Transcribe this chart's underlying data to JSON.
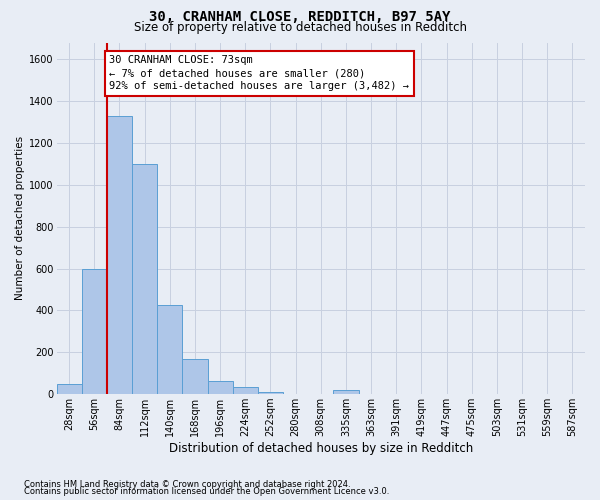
{
  "title1": "30, CRANHAM CLOSE, REDDITCH, B97 5AY",
  "title2": "Size of property relative to detached houses in Redditch",
  "xlabel": "Distribution of detached houses by size in Redditch",
  "ylabel": "Number of detached properties",
  "footnote1": "Contains HM Land Registry data © Crown copyright and database right 2024.",
  "footnote2": "Contains public sector information licensed under the Open Government Licence v3.0.",
  "bin_labels": [
    "28sqm",
    "56sqm",
    "84sqm",
    "112sqm",
    "140sqm",
    "168sqm",
    "196sqm",
    "224sqm",
    "252sqm",
    "280sqm",
    "308sqm",
    "335sqm",
    "363sqm",
    "391sqm",
    "419sqm",
    "447sqm",
    "475sqm",
    "503sqm",
    "531sqm",
    "559sqm",
    "587sqm"
  ],
  "bar_values": [
    50,
    600,
    1330,
    1100,
    425,
    170,
    65,
    35,
    10,
    0,
    0,
    20,
    0,
    0,
    0,
    0,
    0,
    0,
    0,
    0,
    0
  ],
  "bar_color": "#aec6e8",
  "bar_edge_color": "#5a9fd4",
  "vline_position": 1.5,
  "vline_color": "#cc0000",
  "annotation_line1": "30 CRANHAM CLOSE: 73sqm",
  "annotation_line2": "← 7% of detached houses are smaller (280)",
  "annotation_line3": "92% of semi-detached houses are larger (3,482) →",
  "annotation_box_facecolor": "#ffffff",
  "annotation_box_edgecolor": "#cc0000",
  "ylim_max": 1680,
  "yticks": [
    0,
    200,
    400,
    600,
    800,
    1000,
    1200,
    1400,
    1600
  ],
  "grid_color": "#c8d0e0",
  "bg_color": "#e8edf5",
  "title1_fontsize": 10,
  "title2_fontsize": 8.5,
  "ylabel_fontsize": 7.5,
  "xlabel_fontsize": 8.5,
  "tick_fontsize": 7,
  "annotation_fontsize": 7.5,
  "footnote_fontsize": 6
}
